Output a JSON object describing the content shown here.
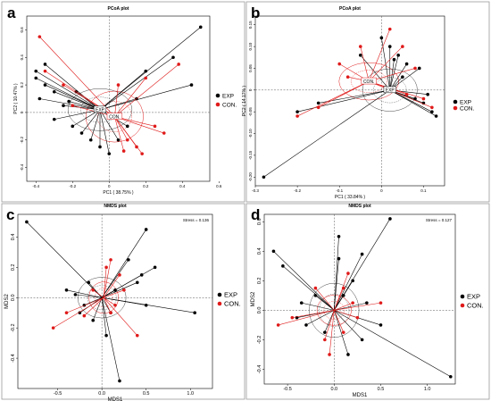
{
  "panels": [
    {
      "letter": "a"
    },
    {
      "letter": "b"
    },
    {
      "letter": "c"
    },
    {
      "letter": "d"
    }
  ],
  "colors": {
    "exp": "#000000",
    "con": "#e01a1a",
    "axis": "#555555",
    "ellipse": "#444444"
  },
  "chart_data": [
    {
      "type": "scatter",
      "title": "PCoA plot",
      "xlabel": "PC1 ( 38.75% )",
      "ylabel": "PC2 ( 10.47% )",
      "xticks": [
        "-0.4",
        "-0.2",
        "0",
        "0.2",
        "0.4",
        "0.6"
      ],
      "yticks": [
        "0.6",
        "0.4",
        "0.2",
        "0",
        "-0.2",
        "-0.4"
      ],
      "centroid_labels": [
        "EXP",
        "CON."
      ],
      "legend": [
        "EXP",
        "CON."
      ],
      "legend_position": "right",
      "xlim": [
        -0.45,
        0.55
      ],
      "ylim": [
        -0.5,
        0.7
      ],
      "series": [
        {
          "name": "EXP",
          "centroid": [
            -0.05,
            0.02
          ],
          "points": [
            [
              -0.4,
              0.25
            ],
            [
              -0.35,
              0.2
            ],
            [
              -0.38,
              0.1
            ],
            [
              -0.4,
              0.3
            ],
            [
              -0.35,
              0.35
            ],
            [
              -0.3,
              0.15
            ],
            [
              -0.25,
              0.05
            ],
            [
              -0.3,
              -0.05
            ],
            [
              -0.2,
              -0.1
            ],
            [
              -0.15,
              -0.15
            ],
            [
              -0.1,
              -0.2
            ],
            [
              -0.05,
              -0.25
            ],
            [
              0.0,
              -0.3
            ],
            [
              0.05,
              -0.2
            ],
            [
              0.1,
              -0.1
            ],
            [
              0.2,
              0.3
            ],
            [
              0.35,
              0.4
            ],
            [
              0.45,
              0.2
            ],
            [
              0.5,
              0.62
            ],
            [
              -0.22,
              0.08
            ],
            [
              -0.18,
              0.15
            ],
            [
              0.15,
              0.1
            ]
          ]
        },
        {
          "name": "CON.",
          "centroid": [
            0.03,
            -0.03
          ],
          "points": [
            [
              -0.38,
              0.55
            ],
            [
              -0.35,
              0.3
            ],
            [
              -0.25,
              0.2
            ],
            [
              -0.2,
              0.05
            ],
            [
              0.05,
              0.2
            ],
            [
              0.2,
              0.25
            ],
            [
              0.38,
              0.35
            ],
            [
              0.1,
              -0.2
            ],
            [
              0.15,
              -0.25
            ],
            [
              0.18,
              -0.3
            ],
            [
              0.25,
              -0.1
            ],
            [
              0.3,
              -0.15
            ],
            [
              0.08,
              -0.28
            ]
          ]
        }
      ]
    },
    {
      "type": "scatter",
      "title": "PCoA plot",
      "xlabel": "PC1 ( 33.84% )",
      "ylabel": "PC2 ( 14.17% )",
      "xticks": [
        "-0.3",
        "-0.2",
        "-0.1",
        "0",
        "0.1"
      ],
      "yticks": [
        "0.15",
        "0.10",
        "0.05",
        "0",
        "-0.05",
        "-0.10",
        "-0.15",
        "-0.20"
      ],
      "centroid_labels": [
        "EXP",
        "CON."
      ],
      "legend": [
        "EXP",
        "CON."
      ],
      "legend_position": "right",
      "xlim": [
        -0.3,
        0.15
      ],
      "ylim": [
        -0.22,
        0.17
      ],
      "series": [
        {
          "name": "EXP",
          "centroid": [
            0.02,
            0.0
          ],
          "points": [
            [
              -0.28,
              -0.2
            ],
            [
              -0.2,
              -0.05
            ],
            [
              -0.15,
              -0.03
            ],
            [
              -0.05,
              0.08
            ],
            [
              0.0,
              0.12
            ],
            [
              0.02,
              0.1
            ],
            [
              0.04,
              0.08
            ],
            [
              0.05,
              0.03
            ],
            [
              0.08,
              -0.02
            ],
            [
              0.1,
              -0.03
            ],
            [
              0.12,
              -0.05
            ],
            [
              0.13,
              -0.06
            ],
            [
              0.09,
              0.05
            ],
            [
              0.06,
              0.06
            ],
            [
              0.03,
              0.07
            ],
            [
              0.11,
              -0.01
            ]
          ]
        },
        {
          "name": "CON.",
          "centroid": [
            -0.03,
            0.02
          ],
          "points": [
            [
              -0.2,
              -0.06
            ],
            [
              -0.15,
              -0.04
            ],
            [
              -0.1,
              0.06
            ],
            [
              -0.05,
              0.1
            ],
            [
              0.02,
              0.14
            ],
            [
              0.05,
              0.1
            ],
            [
              0.08,
              0.05
            ],
            [
              0.1,
              -0.02
            ],
            [
              0.12,
              -0.04
            ],
            [
              -0.08,
              0.03
            ],
            [
              0.06,
              -0.01
            ]
          ]
        }
      ]
    },
    {
      "type": "scatter",
      "title": "NMDS plot",
      "xlabel": "MDS1",
      "ylabel": "MDS2",
      "xticks": [
        "-0.5",
        "0.0",
        "0.5",
        "1.0"
      ],
      "yticks": [
        "0.4",
        "0.2",
        "0.0",
        "-0.2",
        "-0.4"
      ],
      "stress": "Stress = 0.136",
      "legend": [
        "EXP",
        "CON."
      ],
      "legend_position": "right",
      "xlim": [
        -0.95,
        1.25
      ],
      "ylim": [
        -0.6,
        0.55
      ],
      "series": [
        {
          "name": "EXP",
          "centroid": [
            0.0,
            0.0
          ],
          "points": [
            [
              -0.85,
              0.5
            ],
            [
              -0.4,
              0.05
            ],
            [
              -0.3,
              0.02
            ],
            [
              -0.2,
              -0.05
            ],
            [
              -0.1,
              -0.15
            ],
            [
              0.05,
              -0.25
            ],
            [
              0.2,
              -0.55
            ],
            [
              0.4,
              0.1
            ],
            [
              0.45,
              0.15
            ],
            [
              0.5,
              -0.05
            ],
            [
              0.3,
              0.25
            ],
            [
              0.6,
              0.2
            ],
            [
              1.05,
              -0.1
            ],
            [
              0.5,
              0.45
            ],
            [
              -0.15,
              0.1
            ],
            [
              0.15,
              0.05
            ],
            [
              -0.25,
              -0.1
            ],
            [
              0.1,
              -0.1
            ]
          ]
        },
        {
          "name": "CON.",
          "centroid": [
            0.02,
            0.0
          ],
          "points": [
            [
              -0.55,
              -0.2
            ],
            [
              -0.4,
              -0.1
            ],
            [
              -0.2,
              -0.12
            ],
            [
              0.05,
              0.2
            ],
            [
              0.1,
              0.25
            ],
            [
              0.2,
              0.15
            ],
            [
              0.4,
              -0.25
            ],
            [
              0.1,
              -0.1
            ],
            [
              -0.1,
              0.05
            ],
            [
              0.25,
              0.05
            ],
            [
              0.15,
              -0.05
            ]
          ]
        }
      ]
    },
    {
      "type": "scatter",
      "title": "NMDS plot",
      "xlabel": "MDS1",
      "ylabel": "MDS2",
      "xticks": [
        "-0.5",
        "0.0",
        "0.5",
        "1.0"
      ],
      "yticks": [
        "0.6",
        "0.4",
        "0.2",
        "0.0",
        "-0.2",
        "-0.4"
      ],
      "stress": "Stress = 0.127",
      "legend": [
        "EXP",
        "CON."
      ],
      "legend_position": "right",
      "xlim": [
        -0.75,
        1.3
      ],
      "ylim": [
        -0.5,
        0.65
      ],
      "series": [
        {
          "name": "EXP",
          "centroid": [
            0.0,
            0.0
          ],
          "points": [
            [
              -0.65,
              0.4
            ],
            [
              -0.55,
              0.3
            ],
            [
              -0.4,
              -0.05
            ],
            [
              -0.3,
              -0.1
            ],
            [
              -0.2,
              0.1
            ],
            [
              0.05,
              0.35
            ],
            [
              0.3,
              0.38
            ],
            [
              0.6,
              0.62
            ],
            [
              0.2,
              0.2
            ],
            [
              0.35,
              0.05
            ],
            [
              0.5,
              -0.1
            ],
            [
              0.3,
              -0.2
            ],
            [
              0.15,
              -0.3
            ],
            [
              1.25,
              -0.45
            ],
            [
              0.05,
              0.5
            ],
            [
              -0.1,
              -0.15
            ],
            [
              0.1,
              0.1
            ],
            [
              -0.35,
              0.05
            ]
          ]
        },
        {
          "name": "CON.",
          "centroid": [
            0.0,
            0.0
          ],
          "points": [
            [
              -0.6,
              -0.1
            ],
            [
              -0.45,
              -0.05
            ],
            [
              -0.2,
              0.15
            ],
            [
              0.1,
              0.15
            ],
            [
              0.2,
              0.05
            ],
            [
              0.5,
              0.05
            ],
            [
              0.1,
              -0.15
            ],
            [
              -0.1,
              -0.2
            ],
            [
              -0.05,
              -0.3
            ],
            [
              0.25,
              -0.05
            ],
            [
              0.15,
              0.25
            ]
          ]
        }
      ]
    }
  ]
}
